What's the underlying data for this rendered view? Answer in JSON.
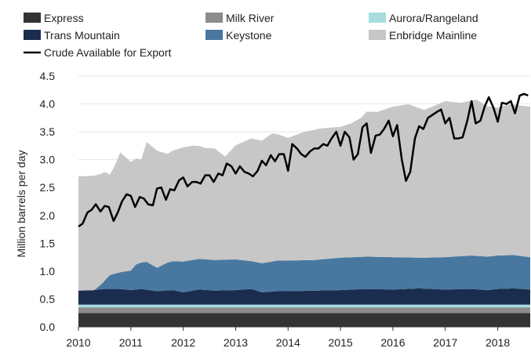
{
  "chart_data": {
    "type": "area",
    "title": "",
    "xlabel": "",
    "ylabel": "Million barrels per day",
    "xlim": [
      2010.0,
      2018.62
    ],
    "ylim": [
      0.0,
      4.5
    ],
    "x_ticks": [
      "2010",
      "2011",
      "2012",
      "2013",
      "2014",
      "2015",
      "2016",
      "2017",
      "2018"
    ],
    "y_ticks": [
      "0.0",
      "0.5",
      "1.0",
      "1.5",
      "2.0",
      "2.5",
      "3.0",
      "3.5",
      "4.0",
      "4.5"
    ],
    "grid": "horizontal",
    "legend_placement": "top",
    "legend": [
      "Express",
      "Milk River",
      "Aurora/Rangeland",
      "Trans Mountain",
      "Keystone",
      "Enbridge Mainline",
      "Crude Available for Export"
    ],
    "stacked_series": [
      {
        "name": "Express",
        "color": "#333333",
        "x": [
          2010.0,
          2018.62
        ],
        "values": [
          0.25,
          0.25
        ]
      },
      {
        "name": "Milk River",
        "color": "#8c8c8c",
        "x": [
          2010.0,
          2018.62
        ],
        "values": [
          0.1,
          0.1
        ]
      },
      {
        "name": "Aurora/Rangeland",
        "color": "#a8dcdf",
        "x": [
          2010.0,
          2018.62
        ],
        "values": [
          0.05,
          0.05
        ]
      },
      {
        "name": "Trans Mountain",
        "color": "#1b2d4f",
        "x": [
          2010.0,
          2010.3,
          2010.5,
          2010.8,
          2011.0,
          2011.2,
          2011.5,
          2011.8,
          2012.0,
          2012.3,
          2012.6,
          2013.0,
          2013.3,
          2013.5,
          2013.8,
          2014.0,
          2014.5,
          2015.0,
          2015.5,
          2016.0,
          2016.5,
          2017.0,
          2017.5,
          2017.8,
          2018.0,
          2018.3,
          2018.62
        ],
        "values": [
          0.25,
          0.26,
          0.28,
          0.28,
          0.26,
          0.28,
          0.24,
          0.26,
          0.22,
          0.27,
          0.25,
          0.26,
          0.28,
          0.22,
          0.24,
          0.24,
          0.25,
          0.26,
          0.28,
          0.27,
          0.29,
          0.27,
          0.28,
          0.26,
          0.28,
          0.29,
          0.27
        ]
      },
      {
        "name": "Keystone",
        "color": "#4878a0",
        "x": [
          2010.0,
          2010.3,
          2010.45,
          2010.6,
          2010.8,
          2011.0,
          2011.1,
          2011.3,
          2011.5,
          2011.7,
          2012.0,
          2012.3,
          2012.6,
          2013.0,
          2013.3,
          2013.5,
          2013.8,
          2014.0,
          2014.5,
          2015.0,
          2015.5,
          2016.0,
          2016.5,
          2017.0,
          2017.5,
          2017.8,
          2018.0,
          2018.3,
          2018.62
        ],
        "values": [
          0.0,
          0.0,
          0.1,
          0.25,
          0.3,
          0.35,
          0.45,
          0.5,
          0.42,
          0.5,
          0.55,
          0.55,
          0.55,
          0.55,
          0.5,
          0.52,
          0.55,
          0.55,
          0.55,
          0.58,
          0.58,
          0.58,
          0.55,
          0.58,
          0.6,
          0.6,
          0.6,
          0.6,
          0.58
        ]
      },
      {
        "name": "Enbridge Mainline",
        "color": "#c7c7c7",
        "x": [
          2010.0,
          2010.3,
          2010.5,
          2010.6,
          2010.7,
          2010.8,
          2011.0,
          2011.2,
          2011.3,
          2011.5,
          2011.7,
          2012.0,
          2012.2,
          2012.4,
          2012.6,
          2012.8,
          2013.0,
          2013.3,
          2013.5,
          2013.7,
          2014.0,
          2014.3,
          2014.6,
          2015.0,
          2015.2,
          2015.4,
          2015.5,
          2015.7,
          2016.0,
          2016.3,
          2016.6,
          2017.0,
          2017.3,
          2017.6,
          2017.8,
          2018.0,
          2018.2,
          2018.4,
          2018.62
        ],
        "values": [
          2.05,
          2.05,
          1.95,
          1.8,
          1.95,
          2.15,
          1.95,
          1.85,
          2.15,
          2.1,
          1.95,
          2.05,
          2.05,
          2.0,
          2.0,
          1.85,
          2.05,
          2.2,
          2.2,
          2.3,
          2.2,
          2.3,
          2.35,
          2.35,
          2.4,
          2.5,
          2.6,
          2.6,
          2.7,
          2.75,
          2.65,
          2.8,
          2.75,
          2.8,
          2.7,
          2.65,
          2.7,
          2.7,
          2.7
        ]
      }
    ],
    "line_series": {
      "name": "Crude Available for Export",
      "color": "#000000",
      "x": [
        2010.0,
        2010.08,
        2010.17,
        2010.25,
        2010.33,
        2010.42,
        2010.5,
        2010.58,
        2010.67,
        2010.75,
        2010.83,
        2010.92,
        2011.0,
        2011.08,
        2011.17,
        2011.25,
        2011.33,
        2011.42,
        2011.5,
        2011.58,
        2011.67,
        2011.75,
        2011.83,
        2011.92,
        2012.0,
        2012.08,
        2012.17,
        2012.25,
        2012.33,
        2012.42,
        2012.5,
        2012.58,
        2012.67,
        2012.75,
        2012.83,
        2012.92,
        2013.0,
        2013.08,
        2013.17,
        2013.25,
        2013.33,
        2013.42,
        2013.5,
        2013.58,
        2013.67,
        2013.75,
        2013.83,
        2013.92,
        2014.0,
        2014.08,
        2014.17,
        2014.25,
        2014.33,
        2014.42,
        2014.5,
        2014.58,
        2014.67,
        2014.75,
        2014.83,
        2014.92,
        2015.0,
        2015.08,
        2015.17,
        2015.25,
        2015.33,
        2015.42,
        2015.5,
        2015.58,
        2015.67,
        2015.75,
        2015.83,
        2015.92,
        2016.0,
        2016.08,
        2016.17,
        2016.25,
        2016.33,
        2016.42,
        2016.5,
        2016.58,
        2016.67,
        2016.75,
        2016.83,
        2016.92,
        2017.0,
        2017.08,
        2017.17,
        2017.25,
        2017.33,
        2017.42,
        2017.5,
        2017.58,
        2017.67,
        2017.75,
        2017.83,
        2017.92,
        2018.0,
        2018.08,
        2018.17,
        2018.25,
        2018.33,
        2018.42,
        2018.5,
        2018.58
      ],
      "values": [
        1.8,
        1.85,
        2.05,
        2.1,
        2.2,
        2.07,
        2.17,
        2.15,
        1.9,
        2.05,
        2.25,
        2.38,
        2.35,
        2.15,
        2.33,
        2.3,
        2.2,
        2.18,
        2.48,
        2.5,
        2.28,
        2.47,
        2.45,
        2.63,
        2.68,
        2.52,
        2.6,
        2.6,
        2.57,
        2.72,
        2.72,
        2.6,
        2.75,
        2.72,
        2.93,
        2.88,
        2.75,
        2.88,
        2.78,
        2.75,
        2.7,
        2.8,
        2.98,
        2.9,
        3.08,
        2.97,
        3.1,
        3.1,
        2.8,
        3.28,
        3.2,
        3.1,
        3.05,
        3.15,
        3.2,
        3.2,
        3.28,
        3.25,
        3.38,
        3.5,
        3.25,
        3.5,
        3.4,
        3.0,
        3.1,
        3.58,
        3.65,
        3.12,
        3.43,
        3.45,
        3.55,
        3.7,
        3.42,
        3.62,
        3.0,
        2.62,
        2.78,
        3.38,
        3.6,
        3.55,
        3.75,
        3.8,
        3.85,
        3.9,
        3.65,
        3.75,
        3.38,
        3.38,
        3.4,
        3.7,
        4.05,
        3.65,
        3.7,
        3.95,
        4.12,
        3.93,
        3.68,
        4.02,
        4.0,
        4.05,
        3.83,
        4.15,
        4.18,
        4.15
      ]
    }
  }
}
